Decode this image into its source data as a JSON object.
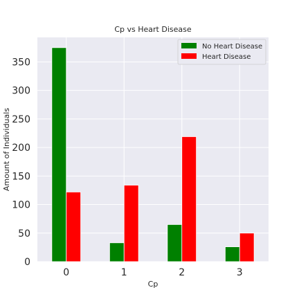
{
  "chart_data": {
    "type": "bar",
    "title": "Cp vs Heart Disease",
    "xlabel": "Cp",
    "ylabel": "Amount of Individuals",
    "categories": [
      "0",
      "1",
      "2",
      "3"
    ],
    "series": [
      {
        "name": "No Heart Disease",
        "color": "#008000",
        "values": [
          375,
          33,
          65,
          26
        ]
      },
      {
        "name": "Heart Disease",
        "color": "#ff0000",
        "values": [
          122,
          134,
          219,
          50
        ]
      }
    ],
    "yticks": [
      0,
      50,
      100,
      150,
      200,
      250,
      300,
      350
    ],
    "ylim": [
      0,
      393
    ],
    "grid": true,
    "legend_position": "top-right",
    "background_color": "#eaeaf2"
  }
}
